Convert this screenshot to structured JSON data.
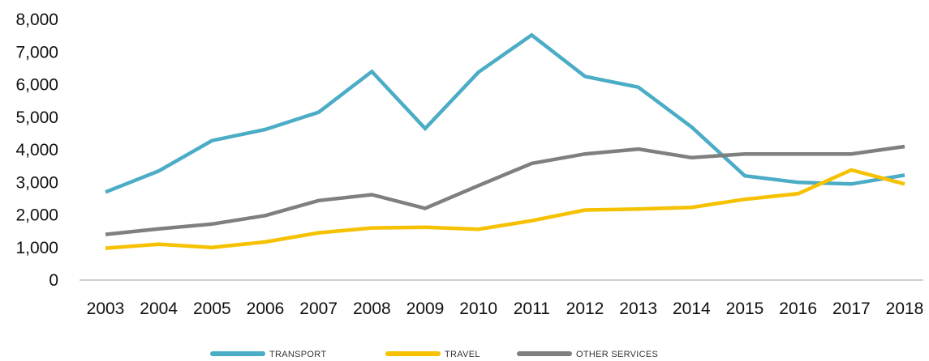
{
  "chart_data": {
    "type": "line",
    "title": "",
    "xlabel": "",
    "ylabel": "",
    "categories": [
      "2003",
      "2004",
      "2005",
      "2006",
      "2007",
      "2008",
      "2009",
      "2010",
      "2011",
      "2012",
      "2013",
      "2014",
      "2015",
      "2016",
      "2017",
      "2018"
    ],
    "ylim": [
      0,
      8000
    ],
    "yticks": [
      0,
      1000,
      2000,
      3000,
      4000,
      5000,
      6000,
      7000,
      8000
    ],
    "ytick_labels": [
      "0",
      "1,000",
      "2,000",
      "3,000",
      "4,000",
      "5,000",
      "6,000",
      "7,000",
      "8,000"
    ],
    "grid": false,
    "legend_position": "bottom",
    "series": [
      {
        "name": "TRANSPORT",
        "color": "#4BACC6",
        "values": [
          2700,
          3350,
          4280,
          4620,
          5150,
          6400,
          4650,
          6380,
          7520,
          6250,
          5920,
          4700,
          3200,
          3000,
          2950,
          3220
        ]
      },
      {
        "name": "TRAVEL",
        "color": "#F5C100",
        "values": [
          980,
          1100,
          1000,
          1170,
          1450,
          1600,
          1620,
          1560,
          1820,
          2150,
          2180,
          2230,
          2480,
          2650,
          3380,
          2950
        ]
      },
      {
        "name": "OTHER SERVICES",
        "color": "#7F7F7F",
        "values": [
          1400,
          1570,
          1720,
          1980,
          2440,
          2620,
          2200,
          2900,
          3580,
          3870,
          4020,
          3760,
          3870,
          3870,
          3870,
          4100
        ]
      }
    ]
  }
}
